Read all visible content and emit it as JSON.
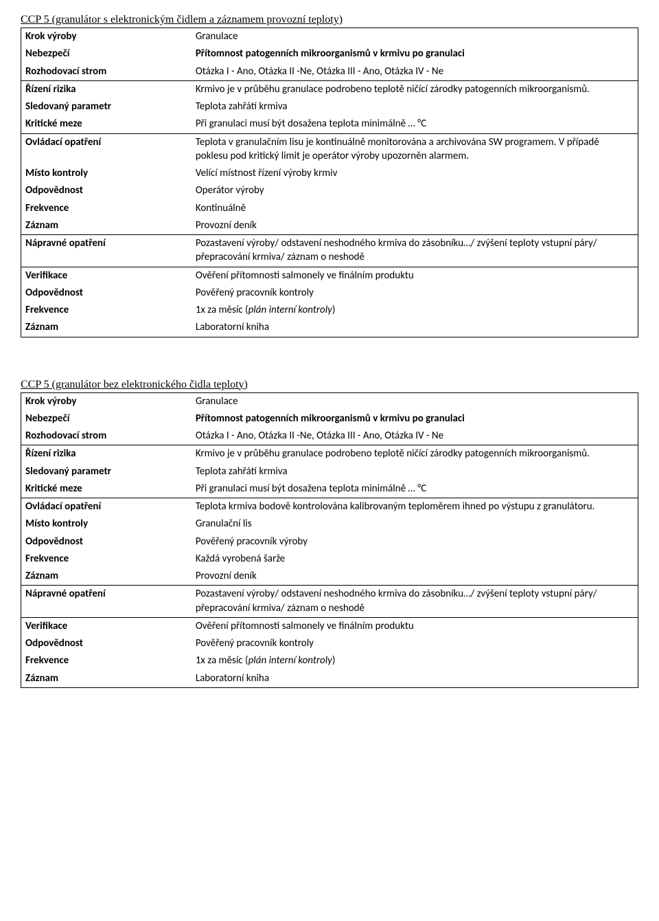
{
  "tables": [
    {
      "title": "CCP 5 (granulátor s elektronickým čidlem a záznamem provozní teploty)",
      "groups": [
        [
          {
            "label": "Krok výroby",
            "value": "Granulace"
          },
          {
            "label": "Nebezpečí",
            "value": "Přítomnost patogenních mikroorganismů v krmivu po granulaci",
            "valueBold": true
          },
          {
            "label": "Rozhodovací strom",
            "value": "Otázka I - Ano, Otázka II -Ne, Otázka III - Ano, Otázka IV - Ne"
          }
        ],
        [
          {
            "label": "Řízení rizika",
            "value": "Krmivo je v průběhu granulace podrobeno teplotě ničící zárodky patogenních mikroorganismů."
          },
          {
            "label": "Sledovaný parametr",
            "value": "Teplota zahřátí krmiva"
          },
          {
            "label": "Kritické meze",
            "value": "Při granulaci musí být dosažena teplota minimálně … °C"
          }
        ],
        [
          {
            "label": "Ovládací opatření",
            "value": "Teplota v granulačním lisu je kontinuálně monitorována a archivována SW programem. V případě poklesu pod kritický limit je operátor výroby upozorněn alarmem."
          },
          {
            "label": "Místo kontroly",
            "value": "Velící místnost řízení výroby krmiv"
          },
          {
            "label": "Odpovědnost",
            "value": "Operátor výroby"
          },
          {
            "label": "Frekvence",
            "value": "Kontinuálně"
          },
          {
            "label": "Záznam",
            "value": "Provozní deník"
          }
        ],
        [
          {
            "label": "Nápravné opatření",
            "value": "Pozastavení výroby/ odstavení neshodného krmiva do zásobníku…/ zvýšení teploty vstupní páry/ přepracování krmiva/ záznam o neshodě"
          }
        ],
        [
          {
            "label": "Verifikace",
            "value": "Ověření přítomnosti salmonely ve finálním produktu"
          },
          {
            "label": "Odpovědnost",
            "value": "Pověřený pracovník kontroly"
          },
          {
            "label": "Frekvence",
            "valuePre": "1x za měsíc (",
            "valueItalic": "plán interní kontroly",
            "valuePost": ")"
          },
          {
            "label": "Záznam",
            "value": "Laboratorní kniha"
          }
        ]
      ]
    },
    {
      "title": "CCP 5 (granulátor bez elektronického čidla teploty)",
      "groups": [
        [
          {
            "label": "Krok výroby",
            "value": "Granulace"
          },
          {
            "label": "Nebezpečí",
            "value": "Přítomnost patogenních mikroorganismů v krmivu po granulaci",
            "valueBold": true
          },
          {
            "label": "Rozhodovací strom",
            "value": "Otázka I - Ano, Otázka II -Ne, Otázka III - Ano, Otázka IV - Ne"
          }
        ],
        [
          {
            "label": "Řízení rizika",
            "value": "Krmivo je v průběhu granulace podrobeno teplotě ničící zárodky patogenních mikroorganismů."
          },
          {
            "label": "Sledovaný parametr",
            "value": "Teplota zahřátí krmiva"
          },
          {
            "label": "Kritické meze",
            "value": "Při granulaci musí být dosažena teplota minimálně … °C"
          }
        ],
        [
          {
            "label": "Ovládací opatření",
            "value": "Teplota krmiva bodově kontrolována kalibrovaným teploměrem ihned po výstupu z granulátoru."
          },
          {
            "label": "Místo kontroly",
            "value": "Granulační lis"
          },
          {
            "label": "Odpovědnost",
            "value": "Pověřený pracovník výroby"
          },
          {
            "label": "Frekvence",
            "value": "Každá vyrobená šarže"
          },
          {
            "label": "Záznam",
            "value": "Provozní deník"
          }
        ],
        [
          {
            "label": "Nápravné opatření",
            "value": "Pozastavení výroby/ odstavení neshodného krmiva do zásobníku…/ zvýšení teploty vstupní páry/ přepracování krmiva/ záznam o neshodě"
          }
        ],
        [
          {
            "label": "Verifikace",
            "value": "Ověření přítomnosti salmonely ve finálním produktu"
          },
          {
            "label": "Odpovědnost",
            "value": "Pověřený pracovník kontroly"
          },
          {
            "label": "Frekvence",
            "valuePre": "1x za měsíc (",
            "valueItalic": "plán interní kontroly",
            "valuePost": ")"
          },
          {
            "label": "Záznam",
            "value": "Laboratorní kniha"
          }
        ]
      ]
    }
  ]
}
